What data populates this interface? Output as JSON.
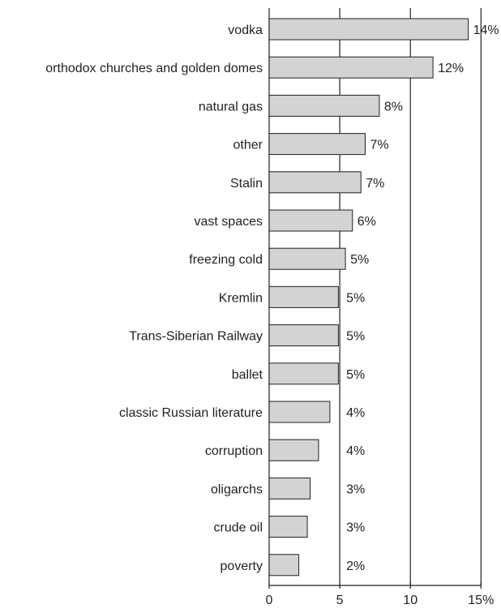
{
  "chart_data": {
    "type": "bar",
    "orientation": "horizontal",
    "categories": [
      "vodka",
      "orthodox churches and golden domes",
      "natural gas",
      "other",
      "Stalin",
      "vast spaces",
      "freezing cold",
      "Kremlin",
      "Trans-Siberian Railway",
      "ballet",
      "classic Russian literature",
      "corruption",
      "oligarchs",
      "crude oil",
      "poverty"
    ],
    "values": [
      14.1,
      11.6,
      7.8,
      6.8,
      6.5,
      5.9,
      5.4,
      4.9,
      4.9,
      4.9,
      4.3,
      3.5,
      2.9,
      2.7,
      2.1
    ],
    "data_labels": [
      "14%",
      "12%",
      "8%",
      "7%",
      "7%",
      "6%",
      "5%",
      "5%",
      "5%",
      "5%",
      "4%",
      "4%",
      "3%",
      "3%",
      "2%"
    ],
    "x_ticks": [
      0,
      5,
      10,
      15
    ],
    "x_tick_labels": [
      "0",
      "5",
      "10",
      "15%"
    ],
    "xlim": [
      0,
      15
    ],
    "grid": "vertical",
    "bar_color": "#d3d3d3",
    "bar_edge_color": "#231f20",
    "title": "",
    "xlabel": "",
    "ylabel": ""
  }
}
